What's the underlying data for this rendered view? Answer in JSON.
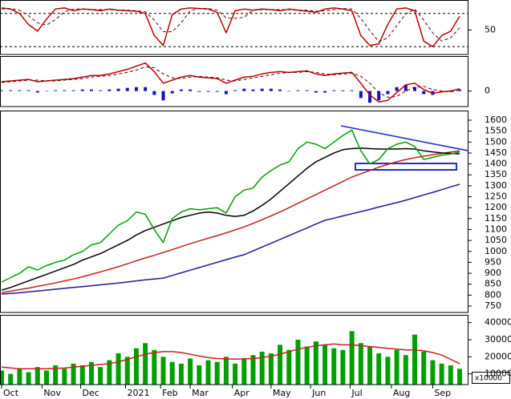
{
  "chart_data": [
    {
      "type": "line",
      "ylim": [
        0,
        100
      ],
      "yticks": [
        50
      ],
      "levels": [
        20,
        80
      ],
      "series": [
        {
          "color": "#c00000",
          "style": "line",
          "values": [
            90,
            88,
            80,
            60,
            48,
            70,
            88,
            90,
            85,
            88,
            87,
            85,
            88,
            86,
            85,
            84,
            80,
            40,
            22,
            78,
            88,
            90,
            89,
            88,
            82,
            45,
            85,
            88,
            86,
            88,
            87,
            85,
            88,
            86,
            84,
            82,
            88,
            90,
            88,
            85,
            40,
            22,
            25,
            60,
            88,
            90,
            85,
            30,
            20,
            40,
            48,
            75
          ]
        },
        {
          "color": "#600000",
          "style": "dashed",
          "values": [
            88,
            89,
            86,
            76,
            63,
            59,
            69,
            83,
            88,
            88,
            87,
            87,
            87,
            86,
            86,
            85,
            83,
            68,
            47,
            47,
            63,
            85,
            89,
            89,
            86,
            72,
            71,
            73,
            86,
            87,
            87,
            87,
            87,
            86,
            86,
            84,
            85,
            87,
            89,
            88,
            71,
            49,
            29,
            36,
            58,
            79,
            88,
            68,
            45,
            30,
            36,
            54
          ]
        }
      ]
    },
    {
      "type": "line",
      "ylim": [
        -20,
        45
      ],
      "yticks": [
        0
      ],
      "series": [
        {
          "color": "#1010c0",
          "style": "bar",
          "values": [
            1,
            1,
            1,
            1,
            -2,
            0,
            1,
            1,
            1,
            2,
            2,
            1,
            2,
            3,
            4,
            5,
            5,
            -5,
            -12,
            -3,
            2,
            2,
            -1,
            -1,
            -1,
            -4,
            1,
            3,
            2,
            3,
            3,
            2,
            0,
            1,
            1,
            -2,
            -2,
            1,
            1,
            1,
            -9,
            -15,
            -12,
            -4,
            5,
            8,
            5,
            -4,
            -5,
            -1,
            1,
            2
          ]
        },
        {
          "color": "#c00000",
          "style": "line",
          "values": [
            12,
            13,
            14,
            15,
            12,
            13,
            14,
            15,
            16,
            18,
            20,
            20,
            22,
            25,
            28,
            32,
            36,
            25,
            10,
            14,
            18,
            20,
            18,
            17,
            16,
            10,
            14,
            18,
            19,
            22,
            24,
            25,
            24,
            25,
            26,
            22,
            20,
            22,
            23,
            24,
            10,
            -5,
            -14,
            -12,
            -2,
            8,
            10,
            2,
            -3,
            -1,
            0,
            3
          ]
        },
        {
          "color": "#600000",
          "style": "dashed",
          "values": [
            11,
            12,
            13,
            14,
            14,
            13,
            13,
            14,
            15,
            16,
            18,
            19,
            20,
            22,
            24,
            27,
            31,
            30,
            22,
            17,
            16,
            18,
            19,
            18,
            17,
            14,
            13,
            15,
            17,
            19,
            21,
            23,
            24,
            24,
            25,
            24,
            22,
            21,
            22,
            23,
            19,
            10,
            -2,
            -8,
            -7,
            0,
            5,
            6,
            2,
            0,
            -1,
            1
          ]
        }
      ]
    },
    {
      "type": "line",
      "ylim": [
        750,
        1600
      ],
      "yticks": [
        750,
        800,
        850,
        900,
        950,
        1000,
        1050,
        1100,
        1150,
        1200,
        1250,
        1300,
        1350,
        1400,
        1450,
        1500,
        1550,
        1600
      ],
      "series": [
        {
          "color": "#1a1aa0",
          "style": "line",
          "values": [
            805,
            808,
            811,
            815,
            819,
            823,
            827,
            831,
            835,
            839,
            843,
            847,
            851,
            855,
            860,
            865,
            870,
            874,
            878,
            890,
            902,
            914,
            926,
            938,
            950,
            962,
            974,
            985,
            1002,
            1020,
            1037,
            1055,
            1072,
            1090,
            1107,
            1125,
            1142,
            1152,
            1162,
            1172,
            1182,
            1192,
            1203,
            1213,
            1223,
            1234,
            1246,
            1258,
            1270,
            1282,
            1295,
            1307
          ]
        },
        {
          "color": "#cc1f1f",
          "style": "line",
          "values": [
            812,
            818,
            825,
            832,
            840,
            848,
            856,
            865,
            874,
            884,
            895,
            906,
            918,
            930,
            943,
            957,
            970,
            982,
            995,
            1008,
            1022,
            1035,
            1048,
            1060,
            1072,
            1085,
            1098,
            1112,
            1128,
            1145,
            1162,
            1180,
            1200,
            1220,
            1240,
            1260,
            1280,
            1300,
            1320,
            1340,
            1355,
            1370,
            1385,
            1398,
            1410,
            1420,
            1428,
            1435,
            1442,
            1448,
            1454,
            1460
          ]
        },
        {
          "color": "#000000",
          "style": "line",
          "values": [
            823,
            835,
            850,
            865,
            880,
            895,
            910,
            925,
            940,
            960,
            975,
            990,
            1010,
            1030,
            1050,
            1075,
            1095,
            1110,
            1125,
            1140,
            1155,
            1165,
            1175,
            1180,
            1175,
            1165,
            1160,
            1165,
            1185,
            1210,
            1240,
            1275,
            1310,
            1345,
            1380,
            1410,
            1430,
            1450,
            1465,
            1470,
            1472,
            1470,
            1468,
            1468,
            1468,
            1470,
            1468,
            1460,
            1455,
            1450,
            1448,
            1446
          ]
        },
        {
          "color": "#00a000",
          "style": "line",
          "values": [
            860,
            880,
            900,
            930,
            915,
            935,
            950,
            960,
            985,
            1000,
            1030,
            1040,
            1080,
            1120,
            1140,
            1180,
            1170,
            1100,
            1040,
            1150,
            1180,
            1195,
            1190,
            1195,
            1200,
            1175,
            1250,
            1280,
            1290,
            1340,
            1370,
            1395,
            1410,
            1470,
            1500,
            1490,
            1470,
            1500,
            1530,
            1555,
            1460,
            1400,
            1420,
            1470,
            1490,
            1500,
            1480,
            1420,
            1430,
            1440,
            1445,
            1455
          ]
        }
      ]
    },
    {
      "type": "bar",
      "ylim": [
        0,
        45000
      ],
      "yticks": [
        10000,
        20000,
        30000,
        40000
      ],
      "unit_label": "x10000",
      "xlim": [
        0,
        51
      ],
      "xticks": [
        {
          "value": 0,
          "label": "Oct"
        },
        {
          "value": 4.5,
          "label": "Nov"
        },
        {
          "value": 8.8,
          "label": "Dec"
        },
        {
          "value": 13.8,
          "label": "2021"
        },
        {
          "value": 17.7,
          "label": "Feb"
        },
        {
          "value": 21,
          "label": "Mar"
        },
        {
          "value": 25.7,
          "label": "Apr"
        },
        {
          "value": 30,
          "label": "May"
        },
        {
          "value": 34.4,
          "label": "Jun"
        },
        {
          "value": 38.8,
          "label": "Jul"
        },
        {
          "value": 43.4,
          "label": "Aug"
        },
        {
          "value": 48,
          "label": "Sep"
        }
      ],
      "series": [
        {
          "color": "#00a000",
          "style": "bar",
          "values": [
            12000,
            10000,
            13000,
            11000,
            14000,
            12000,
            15000,
            13000,
            16000,
            15000,
            17000,
            14000,
            18000,
            22000,
            20000,
            25000,
            28000,
            24000,
            20000,
            17000,
            16000,
            19000,
            15000,
            18000,
            17000,
            20000,
            16000,
            19000,
            21000,
            23000,
            22000,
            27000,
            24000,
            30000,
            26000,
            29000,
            27000,
            25000,
            24000,
            35000,
            28000,
            26000,
            22000,
            20000,
            24000,
            21000,
            33000,
            23000,
            18000,
            16000,
            15000,
            13000
          ]
        },
        {
          "color": "#cc1f1f",
          "style": "line",
          "values": [
            14000,
            13500,
            13000,
            13000,
            13000,
            13000,
            13200,
            13400,
            14000,
            14500,
            15000,
            15500,
            16000,
            17000,
            18500,
            20000,
            21500,
            22500,
            23000,
            23000,
            22500,
            21500,
            20500,
            19500,
            19000,
            18800,
            18600,
            18800,
            19000,
            19500,
            20500,
            21500,
            23000,
            24500,
            25500,
            26500,
            27000,
            27500,
            27000,
            27000,
            26500,
            26000,
            25500,
            25000,
            24500,
            24000,
            24000,
            23500,
            22500,
            21000,
            18500,
            16000
          ]
        }
      ]
    }
  ]
}
